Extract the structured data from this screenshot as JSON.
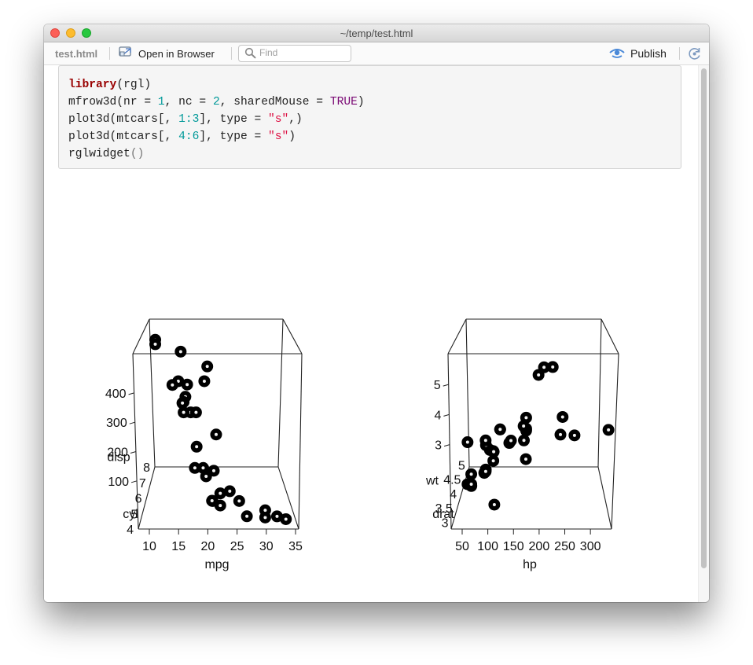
{
  "window": {
    "title": "~/temp/test.html"
  },
  "toolbar": {
    "tab_label": "test.html",
    "open_browser_label": "Open in Browser",
    "find_placeholder": "Find",
    "publish_label": "Publish"
  },
  "code": {
    "l1": {
      "kw": "library",
      "p1": "(rgl)"
    },
    "l2": {
      "a": "mfrow3d(nr = ",
      "n1": "1",
      "b": ", nc = ",
      "n2": "2",
      "c": ", sharedMouse = ",
      "t": "TRUE",
      "d": ")"
    },
    "l3": {
      "a": "plot3d(mtcars[, ",
      "n": "1:3",
      "b": "], type = ",
      "s": "\"s\"",
      "c": ",)"
    },
    "l4": {
      "a": "plot3d(mtcars[, ",
      "n": "4:6",
      "b": "], type = ",
      "s": "\"s\"",
      "c": ")"
    },
    "l5": {
      "a": "rglwidget",
      "p": "()"
    }
  },
  "chart_data": [
    {
      "type": "scatter",
      "title": "",
      "xlabel": "mpg",
      "ylabel": "disp",
      "zlabel": "cyl",
      "xticks": [
        "10",
        "15",
        "20",
        "25",
        "30",
        "35"
      ],
      "yticks": [
        "100",
        "200",
        "300",
        "400"
      ],
      "zticks": [
        "4",
        "5",
        "6",
        "7",
        "8"
      ],
      "xlim": [
        10,
        35
      ],
      "ylim": [
        70,
        480
      ],
      "zlim": [
        4,
        8
      ],
      "points": [
        {
          "x": 10.4,
          "y": 472,
          "z": 8
        },
        {
          "x": 10.4,
          "y": 460,
          "z": 8
        },
        {
          "x": 14.7,
          "y": 440,
          "z": 8
        },
        {
          "x": 19.2,
          "y": 400,
          "z": 8
        },
        {
          "x": 18.7,
          "y": 360,
          "z": 8
        },
        {
          "x": 14.3,
          "y": 360,
          "z": 8
        },
        {
          "x": 15.5,
          "y": 318,
          "z": 8
        },
        {
          "x": 15.2,
          "y": 304,
          "z": 8
        },
        {
          "x": 13.3,
          "y": 350,
          "z": 8
        },
        {
          "x": 16.4,
          "y": 275.8,
          "z": 8
        },
        {
          "x": 17.3,
          "y": 275.8,
          "z": 8
        },
        {
          "x": 15.2,
          "y": 275.8,
          "z": 8
        },
        {
          "x": 15.8,
          "y": 351,
          "z": 8
        },
        {
          "x": 15.0,
          "y": 301,
          "z": 8
        },
        {
          "x": 21.4,
          "y": 258,
          "z": 6
        },
        {
          "x": 18.1,
          "y": 225,
          "z": 6
        },
        {
          "x": 19.2,
          "y": 167.6,
          "z": 6
        },
        {
          "x": 17.8,
          "y": 167.6,
          "z": 6
        },
        {
          "x": 21.0,
          "y": 160,
          "z": 6
        },
        {
          "x": 19.7,
          "y": 145,
          "z": 6
        },
        {
          "x": 22.8,
          "y": 108,
          "z": 4
        },
        {
          "x": 24.4,
          "y": 146.7,
          "z": 4
        },
        {
          "x": 22.8,
          "y": 140.8,
          "z": 4
        },
        {
          "x": 32.4,
          "y": 78.7,
          "z": 4
        },
        {
          "x": 30.4,
          "y": 75.7,
          "z": 4
        },
        {
          "x": 33.9,
          "y": 71.1,
          "z": 4
        },
        {
          "x": 21.5,
          "y": 120.1,
          "z": 4
        },
        {
          "x": 27.3,
          "y": 79,
          "z": 4
        },
        {
          "x": 26.0,
          "y": 120.3,
          "z": 4
        },
        {
          "x": 30.4,
          "y": 95.1,
          "z": 4
        },
        {
          "x": 21.4,
          "y": 121,
          "z": 4
        }
      ]
    },
    {
      "type": "scatter",
      "title": "",
      "xlabel": "hp",
      "ylabel": "wt",
      "zlabel": "drat",
      "xticks": [
        "50",
        "100",
        "150",
        "200",
        "250",
        "300"
      ],
      "yticks": [
        "3",
        "4",
        "5"
      ],
      "zticks": [
        "3",
        "3.5",
        "4",
        "4.5",
        "5"
      ],
      "xlim": [
        50,
        335
      ],
      "ylim": [
        1.5,
        5.5
      ],
      "zlim": [
        2.76,
        4.93
      ],
      "points": [
        {
          "x": 110,
          "y": 2.62,
          "z": 3.9
        },
        {
          "x": 110,
          "y": 2.875,
          "z": 3.9
        },
        {
          "x": 93,
          "y": 2.32,
          "z": 3.85
        },
        {
          "x": 110,
          "y": 3.215,
          "z": 3.08
        },
        {
          "x": 175,
          "y": 3.44,
          "z": 3.15
        },
        {
          "x": 105,
          "y": 3.46,
          "z": 2.76
        },
        {
          "x": 245,
          "y": 3.57,
          "z": 3.21
        },
        {
          "x": 62,
          "y": 3.19,
          "z": 3.69
        },
        {
          "x": 95,
          "y": 3.15,
          "z": 3.92
        },
        {
          "x": 123,
          "y": 3.44,
          "z": 3.92
        },
        {
          "x": 123,
          "y": 3.44,
          "z": 3.92
        },
        {
          "x": 180,
          "y": 4.07,
          "z": 3.07
        },
        {
          "x": 180,
          "y": 3.73,
          "z": 3.07
        },
        {
          "x": 180,
          "y": 3.78,
          "z": 3.07
        },
        {
          "x": 205,
          "y": 5.25,
          "z": 2.93
        },
        {
          "x": 215,
          "y": 5.424,
          "z": 3.0
        },
        {
          "x": 230,
          "y": 5.345,
          "z": 3.23
        },
        {
          "x": 66,
          "y": 2.2,
          "z": 4.08
        },
        {
          "x": 52,
          "y": 1.615,
          "z": 4.93
        },
        {
          "x": 65,
          "y": 1.835,
          "z": 4.22
        },
        {
          "x": 97,
          "y": 2.465,
          "z": 3.7
        },
        {
          "x": 150,
          "y": 3.52,
          "z": 2.76
        },
        {
          "x": 150,
          "y": 3.435,
          "z": 3.15
        },
        {
          "x": 245,
          "y": 3.84,
          "z": 3.73
        },
        {
          "x": 175,
          "y": 3.845,
          "z": 3.08
        },
        {
          "x": 66,
          "y": 1.935,
          "z": 4.08
        },
        {
          "x": 91,
          "y": 2.14,
          "z": 4.43
        },
        {
          "x": 113,
          "y": 1.513,
          "z": 3.77
        },
        {
          "x": 264,
          "y": 3.17,
          "z": 4.22
        },
        {
          "x": 175,
          "y": 2.77,
          "z": 3.62
        },
        {
          "x": 335,
          "y": 3.57,
          "z": 3.54
        },
        {
          "x": 109,
          "y": 2.78,
          "z": 4.11
        }
      ]
    }
  ]
}
